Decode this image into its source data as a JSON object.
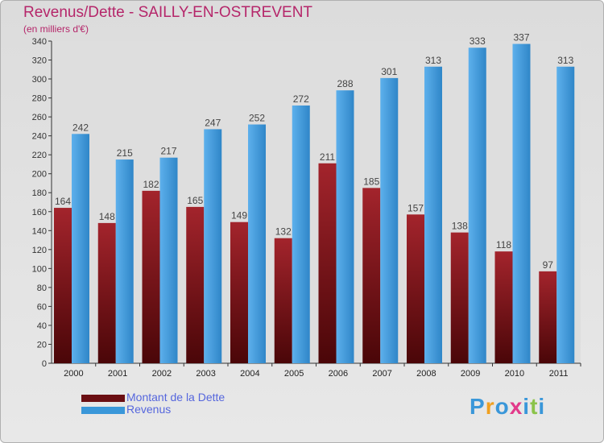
{
  "header": {
    "title": "Revenus/Dette - SAILLY-EN-OSTREVENT",
    "subtitle": "(en milliers d'€)"
  },
  "colors": {
    "title": "#b5266a",
    "debt": "#7a1418",
    "revenue": "#3a97d9",
    "legend_text": "#5566dd"
  },
  "logo": {
    "text": "Proxiti"
  },
  "chart_data": {
    "type": "bar",
    "title": "Revenus/Dette - SAILLY-EN-OSTREVENT",
    "subtitle": "(en milliers d'€)",
    "xlabel": "",
    "ylabel": "",
    "ylim": [
      0,
      340
    ],
    "yticks": [
      0,
      20,
      40,
      60,
      80,
      100,
      120,
      140,
      160,
      180,
      200,
      220,
      240,
      260,
      280,
      300,
      320,
      340
    ],
    "grid": false,
    "legend_position": "bottom-left",
    "categories": [
      "2000",
      "2001",
      "2002",
      "2003",
      "2004",
      "2005",
      "2006",
      "2007",
      "2008",
      "2009",
      "2010",
      "2011"
    ],
    "series": [
      {
        "name": "Montant de la Dette",
        "values": [
          164,
          148,
          182,
          165,
          149,
          132,
          211,
          185,
          157,
          138,
          118,
          97
        ]
      },
      {
        "name": "Revenus",
        "values": [
          242,
          215,
          217,
          247,
          252,
          272,
          288,
          301,
          313,
          333,
          337,
          313
        ]
      }
    ]
  }
}
